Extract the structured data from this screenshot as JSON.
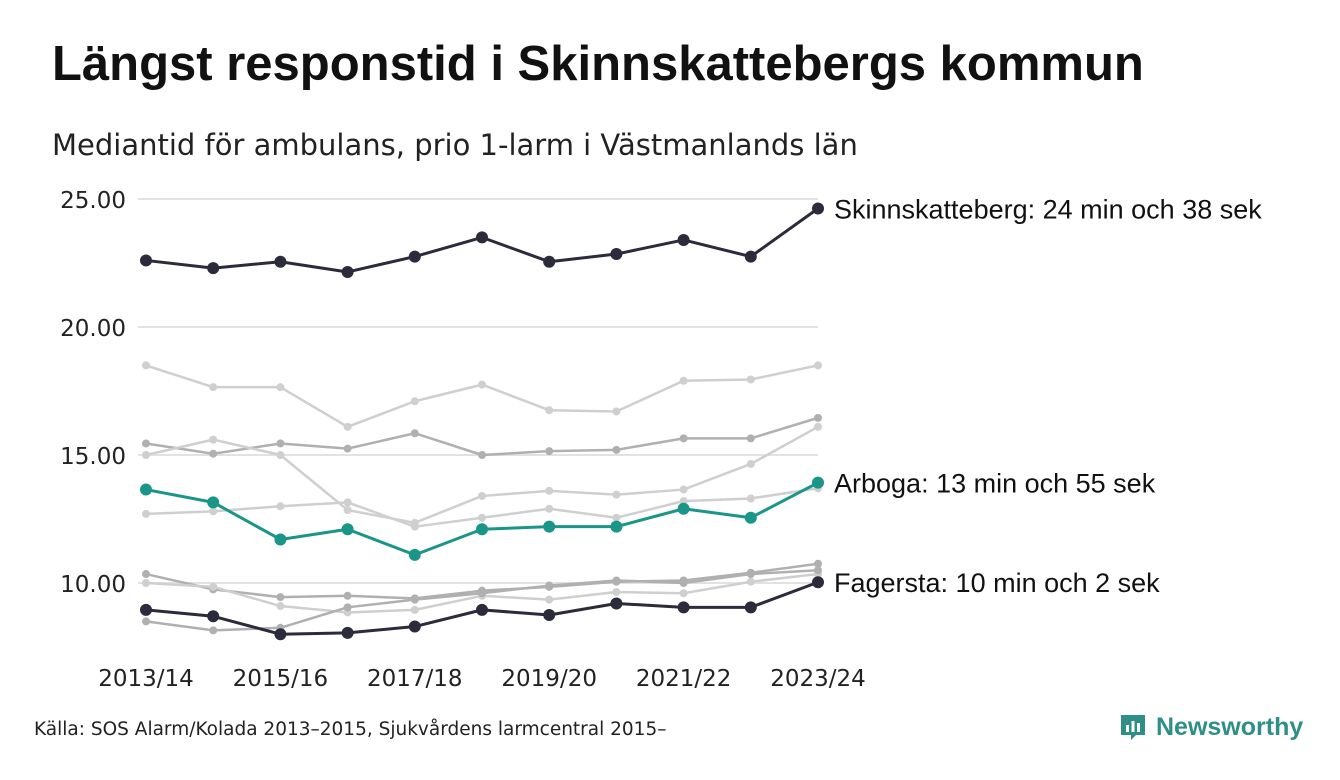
{
  "title": "Längst responstid i Skinnskattebergs kommun",
  "subtitle": "Mediantid för ambulans, prio 1-larm i Västmanlands län",
  "source": "Källa: SOS Alarm/Kolada 2013–2015, Sjukvårdens larmcentral 2015–",
  "brand": "Newsworthy",
  "colors": {
    "highlight_dark": "#2b2b3c",
    "highlight_teal": "#1a9688",
    "background_light": "#cfcfcf",
    "background_mid": "#b0b0b0",
    "gridline": "#e2e2e2",
    "brand": "#2d8f85"
  },
  "chart_data": {
    "type": "line",
    "x": [
      "2013/14",
      "2014/15",
      "2015/16",
      "2016/17",
      "2017/18",
      "2018/19",
      "2019/20",
      "2020/21",
      "2021/22",
      "2022/23",
      "2023/24"
    ],
    "x_tick_labels": [
      "2013/14",
      "2015/16",
      "2017/18",
      "2019/20",
      "2021/22",
      "2023/24"
    ],
    "y_ticks": [
      "10.00",
      "15.00",
      "20.00",
      "25.00"
    ],
    "ylim": [
      8,
      25
    ],
    "grid": "horizontal",
    "series": [
      {
        "role": "background",
        "values": [
          18.5,
          17.65,
          17.65,
          16.1,
          17.1,
          17.75,
          16.75,
          16.7,
          17.9,
          17.95,
          18.5
        ]
      },
      {
        "role": "background",
        "values": [
          15.45,
          15.05,
          15.45,
          15.25,
          15.85,
          15.0,
          15.15,
          15.2,
          15.65,
          15.65,
          16.45
        ]
      },
      {
        "role": "background",
        "values": [
          15.0,
          15.6,
          15.0,
          12.85,
          12.35,
          13.4,
          13.6,
          13.45,
          13.65,
          14.65,
          16.1
        ]
      },
      {
        "role": "background",
        "values": [
          12.7,
          12.8,
          13.0,
          13.15,
          12.2,
          12.55,
          12.9,
          12.55,
          13.2,
          13.3,
          13.7
        ]
      },
      {
        "role": "background",
        "values": [
          10.35,
          9.75,
          9.45,
          9.5,
          9.4,
          9.7,
          9.85,
          10.05,
          10.1,
          10.4,
          10.75
        ]
      },
      {
        "role": "background",
        "values": [
          10.0,
          9.85,
          9.1,
          8.85,
          8.95,
          9.5,
          9.35,
          9.65,
          9.6,
          10.05,
          10.35
        ]
      },
      {
        "role": "background",
        "values": [
          8.5,
          8.15,
          8.25,
          9.05,
          9.35,
          9.6,
          9.9,
          10.1,
          10.0,
          10.35,
          10.5
        ]
      },
      {
        "name": "Skinnskatteberg",
        "role": "highlight_dark",
        "label": "Skinnskatteberg: 24 min och 38 sek",
        "values": [
          22.6,
          22.3,
          22.55,
          22.15,
          22.75,
          23.5,
          22.55,
          22.85,
          23.4,
          22.75,
          24.63
        ]
      },
      {
        "name": "Arboga",
        "role": "highlight_teal",
        "label": "Arboga: 13 min och 55 sek",
        "values": [
          13.65,
          13.15,
          11.7,
          12.1,
          11.1,
          12.1,
          12.2,
          12.2,
          12.9,
          12.55,
          13.92
        ]
      },
      {
        "name": "Fagersta",
        "role": "highlight_dark",
        "label": "Fagersta: 10 min och 2 sek",
        "values": [
          8.95,
          8.7,
          8.0,
          8.05,
          8.3,
          8.95,
          8.75,
          9.2,
          9.05,
          9.05,
          10.03
        ]
      }
    ]
  }
}
